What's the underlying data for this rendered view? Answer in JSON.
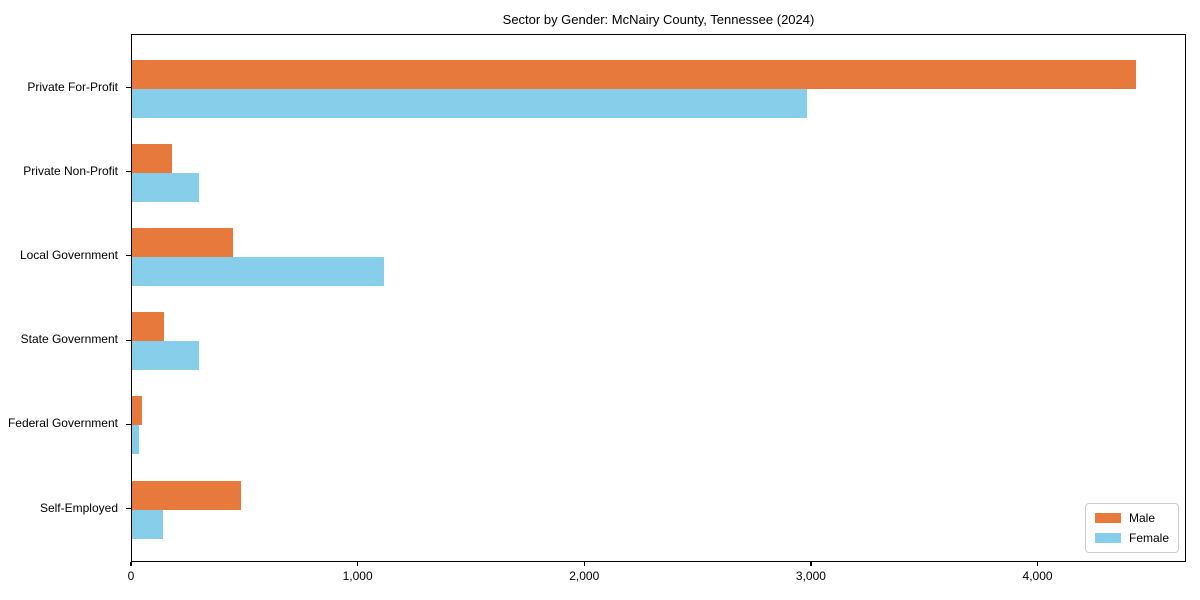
{
  "chart_data": {
    "type": "bar",
    "orientation": "horizontal",
    "title": "Sector by Gender: McNairy County, Tennessee (2024)",
    "categories": [
      "Private For-Profit",
      "Private Non-Profit",
      "Local Government",
      "State Government",
      "Federal Government",
      "Self-Employed"
    ],
    "series": [
      {
        "name": "Male",
        "color": "#e8793d",
        "values": [
          4430,
          175,
          445,
          140,
          45,
          480
        ]
      },
      {
        "name": "Female",
        "color": "#87ceeb",
        "values": [
          2980,
          295,
          1110,
          295,
          30,
          135
        ]
      }
    ],
    "xlim": [
      0,
      4655
    ],
    "xticks": [
      0,
      1000,
      2000,
      3000,
      4000
    ],
    "xtick_labels": [
      "0",
      "1,000",
      "2,000",
      "3,000",
      "4,000"
    ],
    "xlabel": "",
    "ylabel": "",
    "grid": false,
    "legend_position": "lower-right",
    "background_color": "#ffffff",
    "axis_color": "#000000"
  }
}
